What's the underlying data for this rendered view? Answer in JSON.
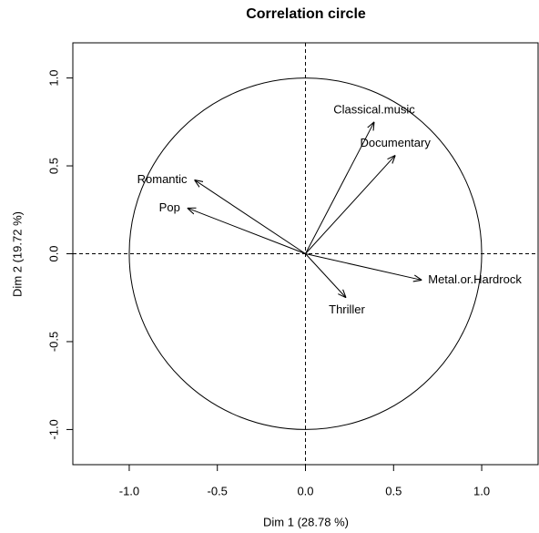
{
  "chart_data": {
    "type": "vector",
    "title": "Correlation circle",
    "xlabel": "Dim 1 (28.78 %)",
    "ylabel": "Dim 2 (19.72 %)",
    "xlim": [
      -1.32,
      1.32
    ],
    "ylim": [
      -1.2,
      1.2
    ],
    "xticks": [
      {
        "value": -1,
        "label": "-1.0"
      },
      -0.5,
      {
        "value": 0,
        "label": "0.0"
      },
      0.5,
      {
        "value": 1,
        "label": "1.0"
      }
    ],
    "yticks": [
      {
        "value": -1,
        "label": "-1.0"
      },
      -0.5,
      {
        "value": 0,
        "label": "0.0"
      },
      0.5,
      {
        "value": 1,
        "label": "1.0"
      }
    ],
    "color": "#000000",
    "points": [
      {
        "label": "Classical.music",
        "x": 0.39,
        "y": 0.75
      },
      {
        "label": "Documentary",
        "x": 0.51,
        "y": 0.56
      },
      {
        "label": "Romantic",
        "x": -0.63,
        "y": 0.42
      },
      {
        "label": "Pop",
        "x": -0.67,
        "y": 0.26
      },
      {
        "label": "Metal.or.Hardrock",
        "x": 0.66,
        "y": -0.15
      },
      {
        "label": "Thriller",
        "x": 0.23,
        "y": -0.25
      }
    ]
  }
}
